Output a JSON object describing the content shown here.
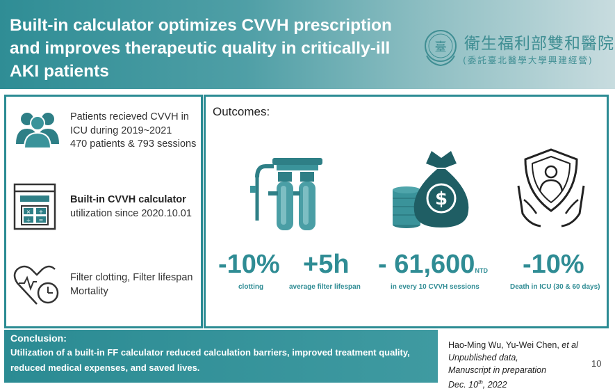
{
  "header": {
    "title": "Built-in calculator optimizes CVVH prescription and improves therapeutic quality in critically-ill AKI patients",
    "logo_main": "衛生福利部雙和醫院",
    "logo_sub": "(委託臺北醫學大學興建經營)",
    "seal_glyph": "臺"
  },
  "left_panel": {
    "item1": {
      "line1": "Patients recieved CVVH in",
      "line2": "ICU during 2019~2021",
      "line3": "470 patients & 793 sessions",
      "icon": "people-icon"
    },
    "item2": {
      "line1": "Built-in CVVH calculator",
      "line2": "utilization since 2020.10.01",
      "icon": "calculator-window-icon"
    },
    "item3": {
      "line1": "Filter clotting, Filter lifespan",
      "line2": "Mortality",
      "icon": "heart-clock-icon"
    }
  },
  "outcomes": {
    "label": "Outcomes:",
    "clotting": {
      "value": "-10%",
      "caption": "clotting"
    },
    "lifespan": {
      "value": "+5h",
      "caption": "average filter lifespan"
    },
    "cost": {
      "value": "- 61,600",
      "unit": "NTD",
      "caption": "in every 10 CVVH sessions"
    },
    "death": {
      "value": "-10%",
      "caption": "Death in ICU (30 & 60 days)"
    }
  },
  "conclusion": {
    "title": "Conclusion:",
    "body": "Utilization of a built-in FF calculator reduced calculation barriers, improved treatment quality, reduced medical expenses, and saved lives."
  },
  "credit": {
    "authors": "Hao-Ming Wu, Yu-Wei Chen, ",
    "etal": "et al",
    "line2": "Unpublished data,",
    "line3": "Manuscript in preparation",
    "date": "Dec. 10",
    "date_sup": "th",
    "year": ", 2022"
  },
  "page_number": "10",
  "colors": {
    "teal": "#2f8c94",
    "dark_teal": "#2b8b93",
    "icon_teal": "#3a7f86"
  }
}
